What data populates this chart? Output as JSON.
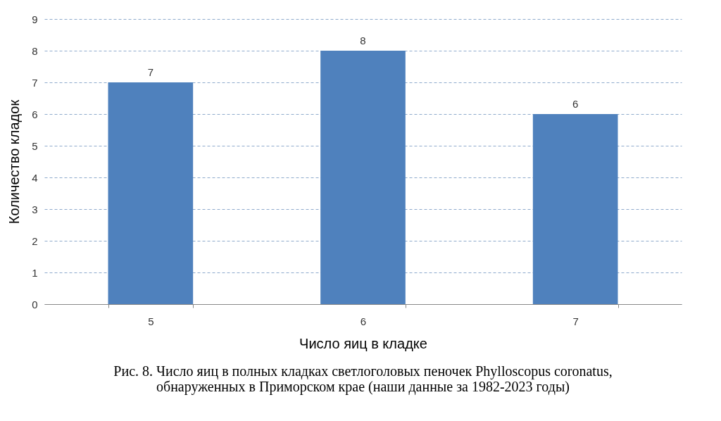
{
  "chart_data": {
    "type": "bar",
    "categories": [
      "5",
      "6",
      "7"
    ],
    "values": [
      7,
      8,
      6
    ],
    "color": "#4f81bd",
    "xlabel": "Число яиц в кладке",
    "ylabel": "Количество кладок",
    "ylim": [
      0,
      9
    ],
    "yticks": [
      0,
      1,
      2,
      3,
      4,
      5,
      6,
      7,
      8,
      9
    ],
    "grid": "y",
    "data_labels": true,
    "annotations": [
      "Рис. 8. Число яиц в полных кладках светлоголовых пеночек Phylloscopus coronatus,",
      "обнаруженных в Приморском крае (наши данные за 1982-2023 годы)"
    ]
  }
}
